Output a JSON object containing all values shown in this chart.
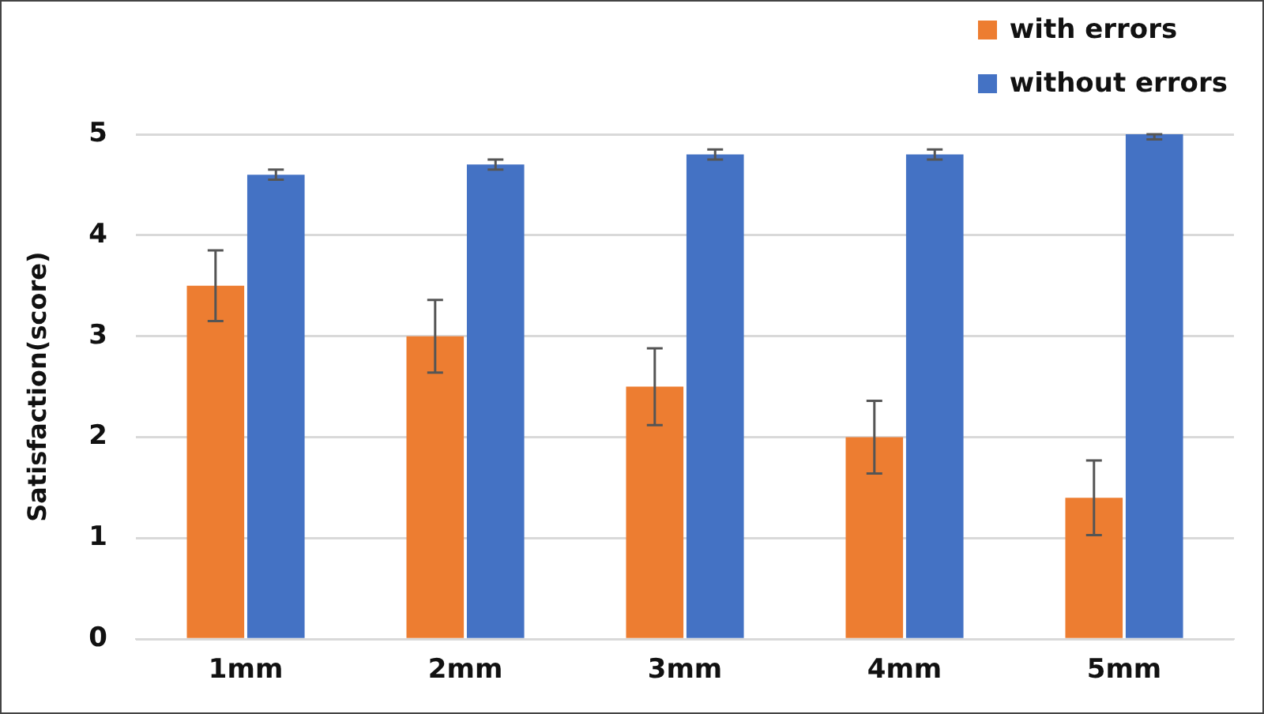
{
  "chart_data": {
    "type": "bar",
    "ylabel": "Satisfaction(score)",
    "categories": [
      "1mm",
      "2mm",
      "3mm",
      "4mm",
      "5mm"
    ],
    "series": [
      {
        "name": "with errors",
        "color": "#ed7d31",
        "values": [
          3.5,
          3.0,
          2.5,
          2.0,
          1.4
        ],
        "errors": [
          0.35,
          0.36,
          0.38,
          0.36,
          0.37
        ]
      },
      {
        "name": "without errors",
        "color": "#4472c4",
        "values": [
          4.6,
          4.7,
          4.8,
          4.8,
          5.0
        ],
        "errors": [
          0.05,
          0.05,
          0.05,
          0.05,
          [
            4.95,
            5.0
          ]
        ]
      }
    ],
    "ylim": [
      0,
      5
    ],
    "yticks": [
      0,
      1,
      2,
      3,
      4,
      5
    ],
    "grid": "y",
    "legend": "top right"
  }
}
